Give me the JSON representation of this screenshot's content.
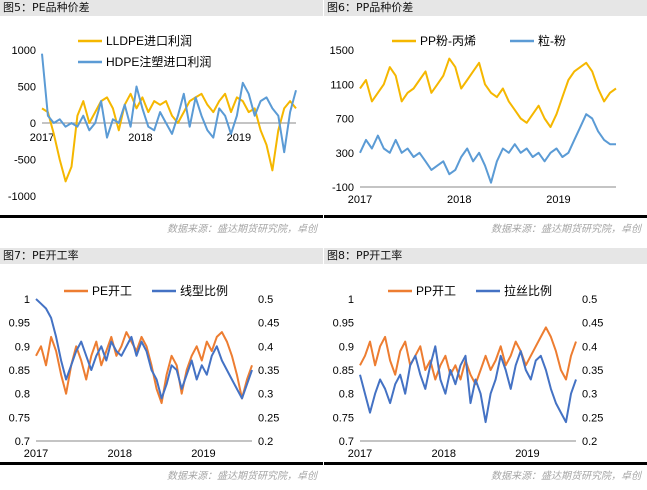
{
  "source_text": "数据来源：盛达期货研究院，卓创",
  "colors": {
    "orange": "#f5b700",
    "blue": "#5b9bd5",
    "orange2": "#ed7d31",
    "blue2": "#4472c4"
  },
  "chart_data": [
    {
      "id": "fig5",
      "type": "line",
      "title": "图5：PE品种价差",
      "xticks": [
        "2017",
        "2018",
        "2019"
      ],
      "xlim": [
        2017.0,
        2019.58
      ],
      "ylim": [
        -1000,
        1000
      ],
      "yticks": [
        -1000,
        -500,
        0,
        500,
        1000
      ],
      "series": [
        {
          "name": "LLDPE进口利润",
          "color": "#f5b700",
          "x": [
            2017.0,
            2017.06,
            2017.12,
            2017.18,
            2017.24,
            2017.3,
            2017.36,
            2017.42,
            2017.48,
            2017.54,
            2017.6,
            2017.66,
            2017.72,
            2017.78,
            2017.84,
            2017.9,
            2017.96,
            2018.02,
            2018.08,
            2018.14,
            2018.2,
            2018.26,
            2018.32,
            2018.38,
            2018.44,
            2018.5,
            2018.56,
            2018.62,
            2018.68,
            2018.74,
            2018.8,
            2018.86,
            2018.92,
            2018.98,
            2019.04,
            2019.1,
            2019.16,
            2019.22,
            2019.28,
            2019.34,
            2019.4,
            2019.46,
            2019.52,
            2019.58
          ],
          "y": [
            200,
            150,
            -150,
            -500,
            -800,
            -600,
            100,
            300,
            0,
            150,
            300,
            350,
            200,
            -100,
            250,
            400,
            200,
            350,
            150,
            300,
            250,
            300,
            100,
            0,
            150,
            300,
            350,
            400,
            250,
            150,
            300,
            400,
            150,
            350,
            300,
            150,
            200,
            -100,
            -300,
            -650,
            -100,
            200,
            300,
            200
          ]
        },
        {
          "name": "HDPE注塑进口利润",
          "color": "#5b9bd5",
          "x": [
            2017.0,
            2017.06,
            2017.12,
            2017.18,
            2017.24,
            2017.3,
            2017.36,
            2017.42,
            2017.48,
            2017.54,
            2017.6,
            2017.66,
            2017.72,
            2017.78,
            2017.84,
            2017.9,
            2017.96,
            2018.02,
            2018.08,
            2018.14,
            2018.2,
            2018.26,
            2018.32,
            2018.38,
            2018.44,
            2018.5,
            2018.56,
            2018.62,
            2018.68,
            2018.74,
            2018.8,
            2018.86,
            2018.92,
            2018.98,
            2019.04,
            2019.1,
            2019.16,
            2019.22,
            2019.28,
            2019.34,
            2019.4,
            2019.46,
            2019.52,
            2019.58
          ],
          "y": [
            950,
            100,
            0,
            50,
            -50,
            0,
            -50,
            100,
            -100,
            0,
            300,
            -200,
            50,
            0,
            250,
            -50,
            500,
            200,
            -50,
            -100,
            150,
            0,
            -150,
            100,
            400,
            -50,
            350,
            100,
            -100,
            -200,
            200,
            100,
            -150,
            100,
            550,
            400,
            100,
            300,
            350,
            200,
            100,
            -400,
            150,
            450
          ]
        }
      ]
    },
    {
      "id": "fig6",
      "type": "line",
      "title": "图6：PP品种价差",
      "xticks": [
        "2017",
        "2018",
        "2019"
      ],
      "xlim": [
        2017.0,
        2019.58
      ],
      "ylim": [
        -100,
        1500
      ],
      "yticks": [
        -100,
        300,
        700,
        1100,
        1500
      ],
      "series": [
        {
          "name": "PP粉-丙烯",
          "color": "#f5b700",
          "x": [
            2017.0,
            2017.06,
            2017.12,
            2017.18,
            2017.24,
            2017.3,
            2017.36,
            2017.42,
            2017.48,
            2017.54,
            2017.6,
            2017.66,
            2017.72,
            2017.78,
            2017.84,
            2017.9,
            2017.96,
            2018.02,
            2018.08,
            2018.14,
            2018.2,
            2018.26,
            2018.32,
            2018.38,
            2018.44,
            2018.5,
            2018.56,
            2018.62,
            2018.68,
            2018.74,
            2018.8,
            2018.86,
            2018.92,
            2018.98,
            2019.04,
            2019.1,
            2019.16,
            2019.22,
            2019.28,
            2019.34,
            2019.4,
            2019.46,
            2019.52,
            2019.58
          ],
          "y": [
            1050,
            1150,
            900,
            1000,
            1100,
            1300,
            1200,
            900,
            1000,
            1050,
            1150,
            1250,
            1000,
            1100,
            1200,
            1400,
            1300,
            1050,
            1150,
            1250,
            1350,
            1100,
            1000,
            950,
            1050,
            900,
            800,
            700,
            650,
            750,
            850,
            700,
            600,
            750,
            950,
            1150,
            1250,
            1300,
            1350,
            1250,
            1050,
            900,
            1000,
            1050
          ]
        },
        {
          "name": "粒-粉",
          "color": "#5b9bd5",
          "x": [
            2017.0,
            2017.06,
            2017.12,
            2017.18,
            2017.24,
            2017.3,
            2017.36,
            2017.42,
            2017.48,
            2017.54,
            2017.6,
            2017.66,
            2017.72,
            2017.78,
            2017.84,
            2017.9,
            2017.96,
            2018.02,
            2018.08,
            2018.14,
            2018.2,
            2018.26,
            2018.32,
            2018.38,
            2018.44,
            2018.5,
            2018.56,
            2018.62,
            2018.68,
            2018.74,
            2018.8,
            2018.86,
            2018.92,
            2018.98,
            2019.04,
            2019.1,
            2019.16,
            2019.22,
            2019.28,
            2019.34,
            2019.4,
            2019.46,
            2019.52,
            2019.58
          ],
          "y": [
            300,
            450,
            350,
            500,
            350,
            300,
            450,
            300,
            350,
            250,
            300,
            200,
            100,
            150,
            200,
            50,
            100,
            250,
            350,
            200,
            300,
            150,
            -50,
            200,
            350,
            300,
            400,
            300,
            350,
            250,
            300,
            200,
            300,
            350,
            250,
            300,
            450,
            600,
            750,
            700,
            550,
            450,
            400,
            400
          ]
        }
      ]
    },
    {
      "id": "fig7",
      "type": "line",
      "title": "图7：PE开工率",
      "xticks": [
        "2017",
        "2018",
        "2019"
      ],
      "xlim": [
        2017.0,
        2019.58
      ],
      "ylim": [
        0.7,
        1.0
      ],
      "yticks": [
        0.7,
        0.75,
        0.8,
        0.85,
        0.9,
        0.95,
        1
      ],
      "y2lim": [
        0.2,
        0.5
      ],
      "y2ticks": [
        0.2,
        0.25,
        0.3,
        0.35,
        0.4,
        0.45,
        0.5
      ],
      "series": [
        {
          "name": "PE开工",
          "color": "#ed7d31",
          "axis": "left",
          "x": [
            2017.0,
            2017.06,
            2017.12,
            2017.18,
            2017.24,
            2017.3,
            2017.36,
            2017.42,
            2017.48,
            2017.54,
            2017.6,
            2017.66,
            2017.72,
            2017.78,
            2017.84,
            2017.9,
            2017.96,
            2018.02,
            2018.08,
            2018.14,
            2018.2,
            2018.26,
            2018.32,
            2018.38,
            2018.44,
            2018.5,
            2018.56,
            2018.62,
            2018.68,
            2018.74,
            2018.8,
            2018.86,
            2018.92,
            2018.98,
            2019.04,
            2019.1,
            2019.16,
            2019.22,
            2019.28,
            2019.34,
            2019.4,
            2019.46,
            2019.52,
            2019.58
          ],
          "y": [
            0.88,
            0.9,
            0.86,
            0.92,
            0.89,
            0.84,
            0.8,
            0.86,
            0.9,
            0.87,
            0.83,
            0.88,
            0.91,
            0.86,
            0.89,
            0.92,
            0.88,
            0.9,
            0.93,
            0.91,
            0.89,
            0.92,
            0.9,
            0.86,
            0.81,
            0.78,
            0.84,
            0.88,
            0.86,
            0.8,
            0.85,
            0.88,
            0.9,
            0.87,
            0.91,
            0.89,
            0.92,
            0.93,
            0.91,
            0.88,
            0.84,
            0.79,
            0.83,
            0.86
          ]
        },
        {
          "name": "线型比例",
          "color": "#4472c4",
          "axis": "right",
          "x": [
            2017.0,
            2017.06,
            2017.12,
            2017.18,
            2017.24,
            2017.3,
            2017.36,
            2017.42,
            2017.48,
            2017.54,
            2017.6,
            2017.66,
            2017.72,
            2017.78,
            2017.84,
            2017.9,
            2017.96,
            2018.02,
            2018.08,
            2018.14,
            2018.2,
            2018.26,
            2018.32,
            2018.38,
            2018.44,
            2018.5,
            2018.56,
            2018.62,
            2018.68,
            2018.74,
            2018.8,
            2018.86,
            2018.92,
            2018.98,
            2019.04,
            2019.1,
            2019.16,
            2019.22,
            2019.28,
            2019.34,
            2019.4,
            2019.46,
            2019.52,
            2019.58
          ],
          "y": [
            0.5,
            0.49,
            0.48,
            0.46,
            0.42,
            0.37,
            0.33,
            0.36,
            0.39,
            0.41,
            0.38,
            0.35,
            0.38,
            0.4,
            0.37,
            0.41,
            0.39,
            0.38,
            0.4,
            0.42,
            0.38,
            0.41,
            0.39,
            0.35,
            0.33,
            0.29,
            0.32,
            0.36,
            0.35,
            0.31,
            0.34,
            0.37,
            0.33,
            0.36,
            0.34,
            0.38,
            0.4,
            0.37,
            0.35,
            0.33,
            0.31,
            0.29,
            0.32,
            0.35
          ]
        }
      ]
    },
    {
      "id": "fig8",
      "type": "line",
      "title": "图8：PP开工率",
      "xticks": [
        "2017",
        "2018",
        "2019"
      ],
      "xlim": [
        2017.0,
        2019.58
      ],
      "ylim": [
        0.7,
        1.0
      ],
      "yticks": [
        0.7,
        0.75,
        0.8,
        0.85,
        0.9,
        0.95,
        1
      ],
      "y2lim": [
        0.2,
        0.5
      ],
      "y2ticks": [
        0.2,
        0.25,
        0.3,
        0.35,
        0.4,
        0.45,
        0.5
      ],
      "series": [
        {
          "name": "PP开工",
          "color": "#ed7d31",
          "axis": "left",
          "x": [
            2017.0,
            2017.06,
            2017.12,
            2017.18,
            2017.24,
            2017.3,
            2017.36,
            2017.42,
            2017.48,
            2017.54,
            2017.6,
            2017.66,
            2017.72,
            2017.78,
            2017.84,
            2017.9,
            2017.96,
            2018.02,
            2018.08,
            2018.14,
            2018.2,
            2018.26,
            2018.32,
            2018.38,
            2018.44,
            2018.5,
            2018.56,
            2018.62,
            2018.68,
            2018.74,
            2018.8,
            2018.86,
            2018.92,
            2018.98,
            2019.04,
            2019.1,
            2019.16,
            2019.22,
            2019.28,
            2019.34,
            2019.4,
            2019.46,
            2019.52,
            2019.58
          ],
          "y": [
            0.86,
            0.88,
            0.91,
            0.86,
            0.9,
            0.92,
            0.87,
            0.84,
            0.89,
            0.91,
            0.86,
            0.88,
            0.9,
            0.85,
            0.87,
            0.83,
            0.86,
            0.88,
            0.84,
            0.86,
            0.83,
            0.87,
            0.84,
            0.82,
            0.85,
            0.88,
            0.85,
            0.87,
            0.9,
            0.86,
            0.88,
            0.91,
            0.89,
            0.86,
            0.88,
            0.9,
            0.92,
            0.94,
            0.92,
            0.89,
            0.85,
            0.83,
            0.88,
            0.91
          ]
        },
        {
          "name": "拉丝比例",
          "color": "#4472c4",
          "axis": "right",
          "x": [
            2017.0,
            2017.06,
            2017.12,
            2017.18,
            2017.24,
            2017.3,
            2017.36,
            2017.42,
            2017.48,
            2017.54,
            2017.6,
            2017.66,
            2017.72,
            2017.78,
            2017.84,
            2017.9,
            2017.96,
            2018.02,
            2018.08,
            2018.14,
            2018.2,
            2018.26,
            2018.32,
            2018.38,
            2018.44,
            2018.5,
            2018.56,
            2018.62,
            2018.68,
            2018.74,
            2018.8,
            2018.86,
            2018.92,
            2018.98,
            2019.04,
            2019.1,
            2019.16,
            2019.22,
            2019.28,
            2019.34,
            2019.4,
            2019.46,
            2019.52,
            2019.58
          ],
          "y": [
            0.34,
            0.3,
            0.26,
            0.3,
            0.33,
            0.31,
            0.28,
            0.32,
            0.34,
            0.3,
            0.36,
            0.38,
            0.34,
            0.31,
            0.36,
            0.4,
            0.33,
            0.3,
            0.35,
            0.32,
            0.36,
            0.38,
            0.28,
            0.33,
            0.3,
            0.24,
            0.3,
            0.33,
            0.38,
            0.35,
            0.31,
            0.36,
            0.39,
            0.35,
            0.33,
            0.37,
            0.38,
            0.35,
            0.31,
            0.28,
            0.26,
            0.24,
            0.3,
            0.33
          ]
        }
      ]
    }
  ]
}
